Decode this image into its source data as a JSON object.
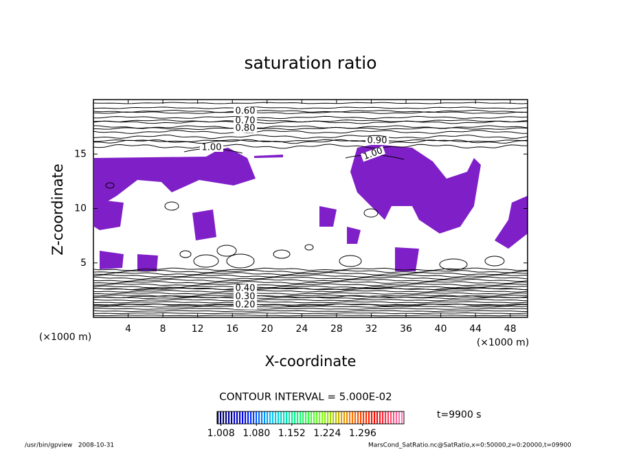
{
  "chart_data": {
    "type": "contour",
    "title": "saturation ratio",
    "x_label": "X-coordinate",
    "y_label": "Z-coordinate",
    "x_unit": "(×1000 m)",
    "y_unit": "(×1000 m)",
    "xlim": [
      0,
      50
    ],
    "ylim": [
      0,
      20
    ],
    "xticks": [
      4,
      8,
      12,
      16,
      20,
      24,
      28,
      32,
      36,
      40,
      44,
      48
    ],
    "yticks": [
      5,
      10,
      15
    ],
    "fill_color": "#7f1fc8",
    "contour_labels": [
      {
        "value": 0.6,
        "label": "0.60"
      },
      {
        "value": 0.7,
        "label": "0.70"
      },
      {
        "value": 0.8,
        "label": "0.80"
      },
      {
        "value": 0.9,
        "label": "0.90"
      },
      {
        "value": 1,
        "label": "1.00"
      },
      {
        "value": 1,
        "label": "1.00"
      },
      {
        "value": 0.4,
        "label": "0.40"
      },
      {
        "value": 0.3,
        "label": "0.30"
      },
      {
        "value": 0.2,
        "label": "0.20"
      }
    ],
    "contour_interval": "CONTOUR INTERVAL = 5.000E-02",
    "colorbar": {
      "clim": [
        1.0,
        1.38
      ],
      "colors": [
        "#000050",
        "#0000ff",
        "#00c0ff",
        "#00ff80",
        "#80ff00",
        "#ff8000",
        "#ff0000",
        "#ff80c0"
      ],
      "ticks": [
        {
          "value": 1.008,
          "label": "1.008"
        },
        {
          "value": 1.08,
          "label": "1.080"
        },
        {
          "value": 1.152,
          "label": "1.152"
        },
        {
          "value": 1.224,
          "label": "1.224"
        },
        {
          "value": 1.296,
          "label": "1.296"
        }
      ]
    },
    "time_label": "t=9900 s",
    "footer_left": "/usr/bin/gpview   2008-10-31",
    "footer_right": "MarsCond_SatRatio.nc@SatRatio,x=0:50000,z=0:20000,t=09900"
  }
}
